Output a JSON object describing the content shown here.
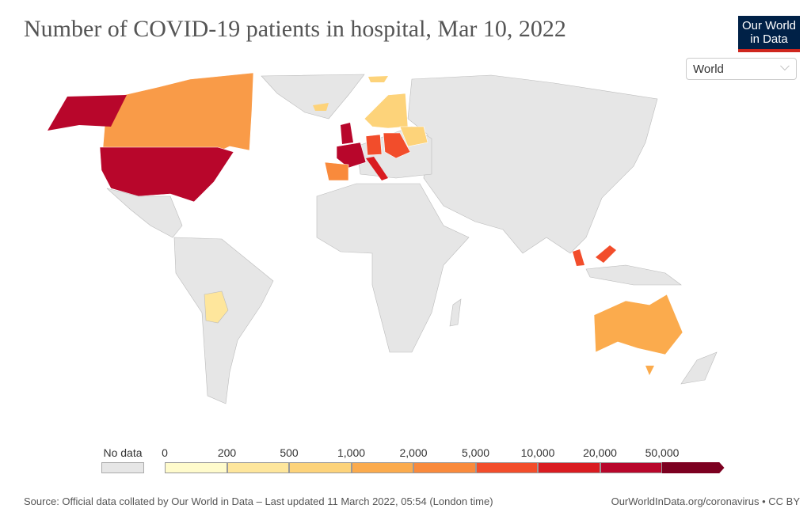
{
  "title": "Number of COVID-19 patients in hospital, Mar 10, 2022",
  "logo": {
    "line1": "Our World",
    "line2": "in Data"
  },
  "entity_selector": {
    "value": "World"
  },
  "legend": {
    "no_data_label": "No data",
    "no_data_color": "#e6e6e6",
    "ticks": [
      "0",
      "200",
      "500",
      "1,000",
      "2,000",
      "5,000",
      "10,000",
      "20,000",
      "50,000"
    ],
    "bins": [
      {
        "range": "0–200",
        "color": "#fffbcc"
      },
      {
        "range": "200–500",
        "color": "#fee69c"
      },
      {
        "range": "500–1,000",
        "color": "#fdd37a"
      },
      {
        "range": "1,000–2,000",
        "color": "#fbab4d"
      },
      {
        "range": "2,000–5,000",
        "color": "#f98a3c"
      },
      {
        "range": "5,000–10,000",
        "color": "#f24d2b"
      },
      {
        "range": "10,000–20,000",
        "color": "#d91b20"
      },
      {
        "range": "20,000–50,000",
        "color": "#b8062b"
      },
      {
        "range": "50,000+",
        "color": "#7c0020"
      }
    ]
  },
  "source": "Source: Official data collated by Our World in Data – Last updated 11 March 2022, 05:54 (London time)",
  "cite": "OurWorldInData.org/coronavirus • CC BY"
}
